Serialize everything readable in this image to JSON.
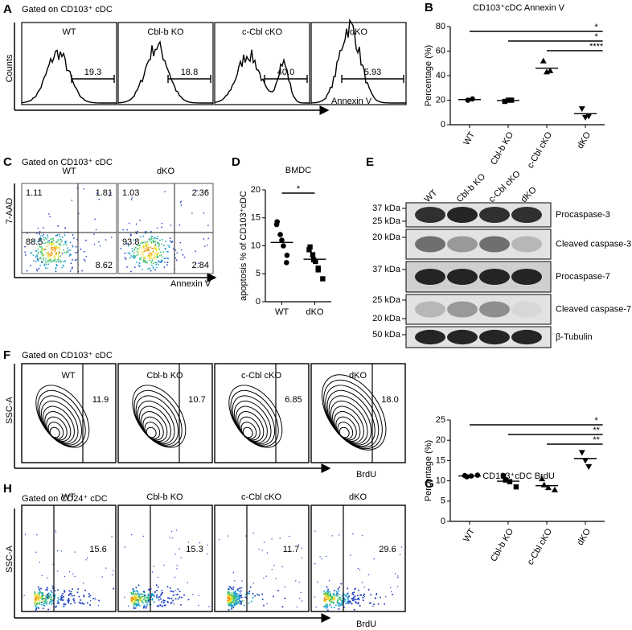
{
  "panels": {
    "A": {
      "letter": "A",
      "gate": "Gated on CD103⁺ cDC",
      "samples": [
        "WT",
        "Cbl-b KO",
        "c-Cbl cKO",
        "dKO"
      ],
      "gates": [
        "19.3",
        "18.8",
        "40.0",
        "5.93"
      ],
      "y_label": "Counts",
      "x_label": "Annexin V"
    },
    "B": {
      "letter": "B"
    },
    "C": {
      "letter": "C",
      "gate": "Gated on CD103⁺ cDC",
      "samples": [
        "WT",
        "dKO"
      ],
      "quadrants": [
        [
          "1.11",
          "1.81",
          "88.5",
          "8.62"
        ],
        [
          "1.03",
          "2.36",
          "93.8",
          "2.84"
        ]
      ],
      "y_label": "7-AAD",
      "x_label": "Annexin V"
    },
    "D": {
      "letter": "D"
    },
    "E": {
      "letter": "E",
      "lanes": [
        "WT",
        "Cbl-b KO",
        "c-Cbl cKO",
        "dKO"
      ],
      "rows": [
        {
          "markers": [
            "37 kDa",
            "25 kDa"
          ],
          "label": "Procaspase-3"
        },
        {
          "markers": [
            "20 kDa"
          ],
          "label": "Cleaved caspase-3"
        },
        {
          "markers": [
            "37 kDa"
          ],
          "label": "Procaspase-7"
        },
        {
          "markers": [
            "25 kDa",
            "20 kDa"
          ],
          "label": "Cleaved caspase-7"
        },
        {
          "markers": [
            "50 kDa"
          ],
          "label": "β-Tubulin"
        }
      ]
    },
    "F": {
      "letter": "F",
      "gate": "Gated on CD103⁺ cDC",
      "samples": [
        "WT",
        "Cbl-b KO",
        "c-Cbl cKO",
        "dKO"
      ],
      "gates": [
        "11.9",
        "10.7",
        "6.85",
        "18.0"
      ],
      "y_label": "SSC-A",
      "x_label": "BrdU"
    },
    "G": {
      "letter": "G"
    },
    "H": {
      "letter": "H",
      "gate": "Gated on CD24⁺ cDC",
      "samples": [
        "WT",
        "Cbl-b KO",
        "c-Cbl cKO",
        "dKO"
      ],
      "gates": [
        "15.6",
        "15.3",
        "11.7",
        "29.6"
      ],
      "y_label": "SSC-A",
      "x_label": "BrdU"
    }
  },
  "chart_data": [
    {
      "type": "dot",
      "title": "CD103⁺cDC Annexin V",
      "y_label": "Percentage (%)",
      "categories": [
        "WT",
        "Cbl-b KO",
        "c-Cbl cKO",
        "dKO"
      ],
      "markers": [
        "circle",
        "square",
        "triangle-up",
        "triangle-down"
      ],
      "color": "#000000",
      "groups": [
        {
          "values": [
            20,
            21
          ],
          "mean": 20.5
        },
        {
          "values": [
            19,
            20,
            20
          ],
          "mean": 19.7
        },
        {
          "values": [
            52,
            43,
            44
          ],
          "mean": 46
        },
        {
          "values": [
            13,
            6,
            7
          ],
          "mean": 9
        }
      ],
      "ylim": [
        0,
        80
      ],
      "yticks": [
        0,
        20,
        40,
        60,
        80
      ],
      "significance": [
        {
          "label": "*",
          "from": 0,
          "to": 3
        },
        {
          "label": "*",
          "from": 1,
          "to": 3
        },
        {
          "label": "****",
          "from": 2,
          "to": 3
        }
      ]
    },
    {
      "type": "dot",
      "title": "BMDC",
      "y_label": "apoptosis % of CD103⁺cDC",
      "categories": [
        "WT",
        "dKO"
      ],
      "markers": [
        "circle",
        "square"
      ],
      "color": "#000000",
      "groups": [
        {
          "values": [
            14.3,
            13.8,
            12,
            11,
            10,
            8.3,
            7
          ],
          "mean": 10.6
        },
        {
          "values": [
            9.8,
            9.3,
            8.4,
            7.5,
            7.2,
            6,
            5.7,
            4.1
          ],
          "mean": 7.6
        }
      ],
      "ylim": [
        0,
        20
      ],
      "yticks": [
        0,
        5,
        10,
        15,
        20
      ],
      "significance": [
        {
          "label": "*",
          "from": 0,
          "to": 1
        }
      ]
    },
    {
      "type": "dot",
      "title": "CD103⁺cDC BrdU",
      "y_label": "Percentage (%)",
      "categories": [
        "WT",
        "Cbl-b KO",
        "c-Cbl cKO",
        "dKO"
      ],
      "markers": [
        "circle",
        "square",
        "triangle-up",
        "triangle-down"
      ],
      "color": "#000000",
      "groups": [
        {
          "values": [
            11.3,
            11,
            11.2,
            11.4
          ],
          "mean": 11.2
        },
        {
          "values": [
            11.2,
            10.2,
            9.8,
            8.5
          ],
          "mean": 9.9
        },
        {
          "values": [
            10.5,
            9,
            8.3,
            7.8
          ],
          "mean": 8.8
        },
        {
          "values": [
            17,
            15,
            13.5
          ],
          "mean": 15.5
        }
      ],
      "ylim": [
        0,
        25
      ],
      "yticks": [
        0,
        5,
        10,
        15,
        20,
        25
      ],
      "significance": [
        {
          "label": "*",
          "from": 0,
          "to": 3
        },
        {
          "label": "**",
          "from": 1,
          "to": 3
        },
        {
          "label": "**",
          "from": 2,
          "to": 3
        }
      ]
    }
  ]
}
